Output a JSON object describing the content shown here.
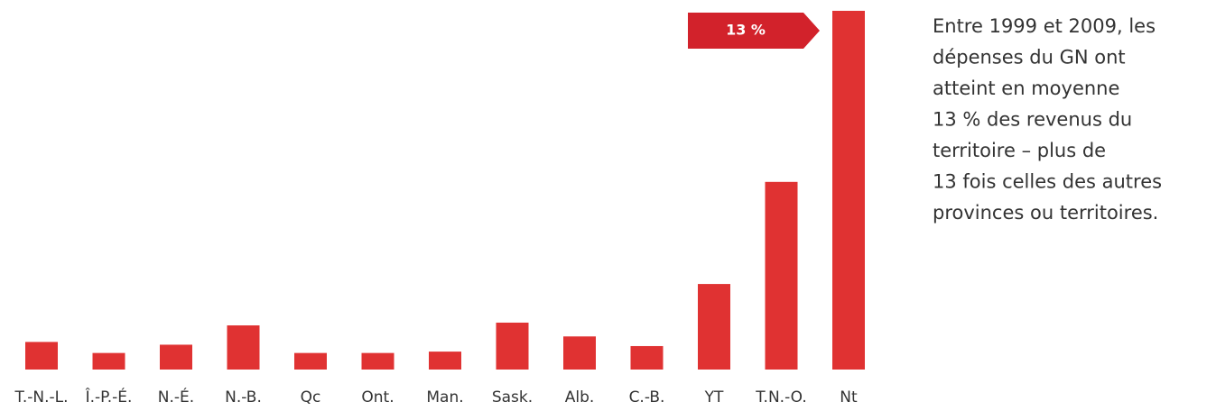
{
  "chart_data": {
    "type": "bar",
    "categories": [
      "T.-N.-L.",
      "Î.-P.-É.",
      "N.-É.",
      "N.-B.",
      "Qc",
      "Ont.",
      "Man.",
      "Sask.",
      "Alb.",
      "C.-B.",
      "YT",
      "T.N.-O.",
      "Nt"
    ],
    "values": [
      1.0,
      0.6,
      0.9,
      1.6,
      0.6,
      0.6,
      0.65,
      1.7,
      1.2,
      0.85,
      3.1,
      6.8,
      13
    ],
    "value_labels": [
      null,
      null,
      null,
      null,
      null,
      null,
      null,
      null,
      null,
      null,
      null,
      null,
      "13 %"
    ],
    "color": "#e03232",
    "label_color": "#d2222b",
    "ylim": [
      0,
      13
    ],
    "annotation": [
      "Entre 1999 et 2009, les",
      "dépenses du GN ont",
      "atteint en moyenne",
      "13 % des revenus du",
      "territoire – plus de",
      "13 fois celles des autres",
      "provinces ou territoires."
    ]
  }
}
